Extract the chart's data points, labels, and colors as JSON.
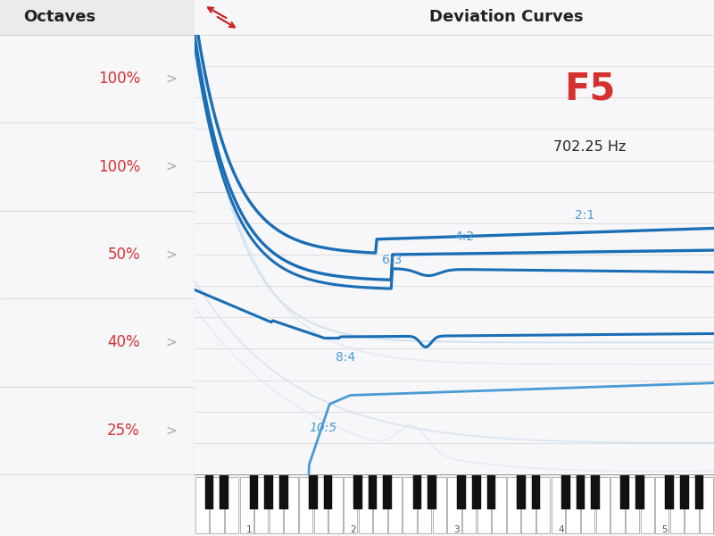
{
  "title": "Deviation Curves",
  "note_label": "F5",
  "freq_label": "702.25 Hz",
  "left_panel_labels": [
    "100%",
    "100%",
    "50%",
    "40%",
    "25%"
  ],
  "bg_color": "#f7f7f9",
  "left_panel_bg": "#f0f0f2",
  "grid_color": "#d8d8dc",
  "curve_dark_blue": "#1a6eb5",
  "curve_mid_blue": "#4a9ad4",
  "curve_light_blue1": "#93bfdf",
  "curve_light_blue2": "#b8d4ea",
  "curve_ghost1": "#c2d8ee",
  "curve_ghost2": "#d4e5f5",
  "piano_white": "#ffffff",
  "piano_black": "#111111",
  "piano_border": "#999999",
  "red_label_color": "#d63030",
  "dark_label_color": "#222222",
  "panel_label_color": "#d63030",
  "chevron_color": "#aaaaaa",
  "header_bg": "#ebebed",
  "separator_color": "#ccccce"
}
